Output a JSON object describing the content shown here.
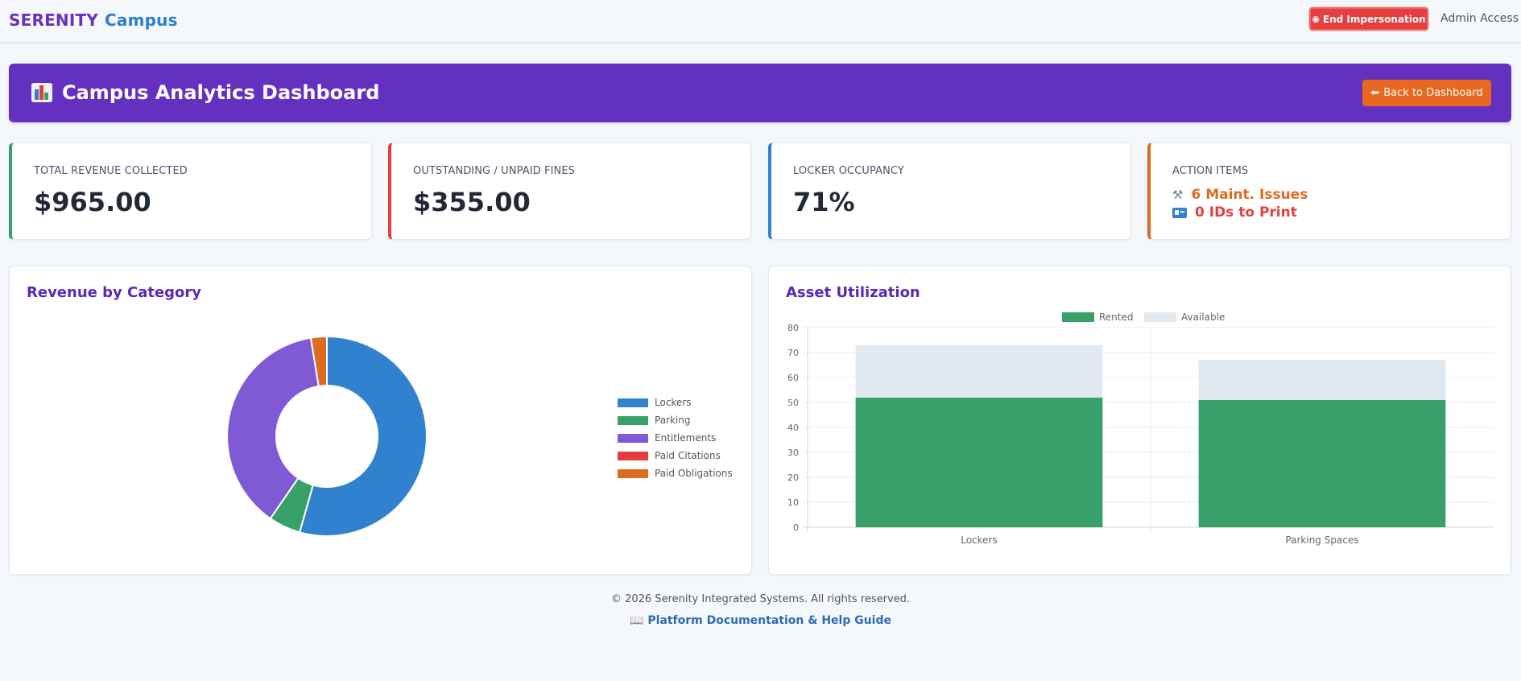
{
  "nav": {
    "brand_primary": "SERENITY",
    "brand_secondary": "Campus",
    "end_impersonation": "End Impersonation",
    "admin_access": "Admin Access"
  },
  "banner": {
    "title": "Campus Analytics Dashboard",
    "back_button": "Back to Dashboard"
  },
  "stats": [
    {
      "label": "TOTAL REVENUE COLLECTED",
      "value": "$965.00",
      "accent": "#38a169"
    },
    {
      "label": "OUTSTANDING / UNPAID FINES",
      "value": "$355.00",
      "accent": "#e53e3e"
    },
    {
      "label": "LOCKER OCCUPANCY",
      "value": "71%",
      "accent": "#3182ce"
    }
  ],
  "action_items": {
    "label": "ACTION ITEMS",
    "accent": "#dd6b20",
    "maint": "6 Maint. Issues",
    "ids": "0 IDs to Print",
    "maint_color": "#dd6b20",
    "ids_color": "#e53e3e"
  },
  "revenue_panel": {
    "title": "Revenue by Category"
  },
  "asset_panel": {
    "title": "Asset Utilization"
  },
  "footer": {
    "copyright": "© 2026 Serenity Integrated Systems. All rights reserved.",
    "doc_link": "Platform Documentation & Help Guide"
  },
  "chart_data": [
    {
      "type": "pie",
      "variant": "doughnut",
      "categories": [
        "Lockers",
        "Parking",
        "Entitlements",
        "Paid Citations",
        "Paid Obligations"
      ],
      "values": [
        525,
        50,
        365,
        0,
        25
      ],
      "colors": [
        "#3182ce",
        "#38a169",
        "#805ad5",
        "#e53e3e",
        "#dd6b20"
      ],
      "legend": "right"
    },
    {
      "type": "bar",
      "stacked": true,
      "categories": [
        "Lockers",
        "Parking Spaces"
      ],
      "series": [
        {
          "name": "Rented",
          "values": [
            52,
            51
          ],
          "color": "#38a169"
        },
        {
          "name": "Available",
          "values": [
            21,
            16
          ],
          "color": "#e2e8f0"
        }
      ],
      "ylim": [
        0,
        80
      ],
      "yticks": [
        0,
        10,
        20,
        30,
        40,
        50,
        60,
        70,
        80
      ],
      "grid": true,
      "legend": "top"
    }
  ]
}
